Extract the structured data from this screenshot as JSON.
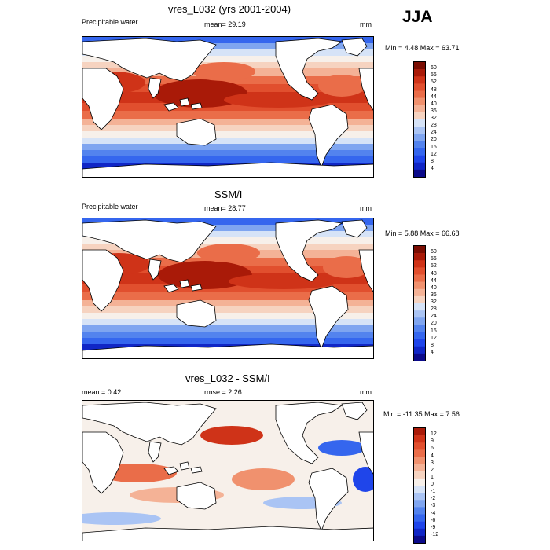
{
  "season": "JJA",
  "colors": {
    "positive_scale": [
      "#0b0a8a",
      "#1026c6",
      "#1f45ea",
      "#3566ee",
      "#5383ee",
      "#7fa5f0",
      "#aac4f4",
      "#d6e3f7",
      "#f7f0ea",
      "#f6d3c0",
      "#f4b296",
      "#f0916e",
      "#ea6d49",
      "#e14f2e",
      "#cf3318",
      "#a91a08",
      "#7a0d02"
    ],
    "diff_scale": [
      "#0b0a8a",
      "#1026c6",
      "#1f45ea",
      "#3566ee",
      "#5383ee",
      "#7fa5f0",
      "#aac4f4",
      "#d6e3f7",
      "#f7f0ea",
      "#f6d3c0",
      "#f4b296",
      "#f0916e",
      "#ea6d49",
      "#e14f2e",
      "#cf3318",
      "#a91a08"
    ],
    "land": "#ffffff"
  },
  "chart_data": [
    {
      "type": "heatmap",
      "title": "vres_L032 (yrs 2001-2004)",
      "left_label": "Precipitable water",
      "center_label": "mean=  29.19",
      "units": "mm",
      "stats": "Min =   4.48 Max =  63.71",
      "colorbar_ticks": [
        "60",
        "56",
        "52",
        "48",
        "44",
        "40",
        "36",
        "32",
        "28",
        "24",
        "20",
        "16",
        "12",
        "8",
        "4"
      ],
      "field": {
        "mean": 29.19,
        "min": 4.48,
        "max": 63.71
      }
    },
    {
      "type": "heatmap",
      "title": "SSM/I",
      "left_label": "Precipitable water",
      "center_label": "mean=  28.77",
      "units": "mm",
      "stats": "Min =   5.88 Max =  66.68",
      "colorbar_ticks": [
        "60",
        "56",
        "52",
        "48",
        "44",
        "40",
        "36",
        "32",
        "28",
        "24",
        "20",
        "16",
        "12",
        "8",
        "4"
      ],
      "field": {
        "mean": 28.77,
        "min": 5.88,
        "max": 66.68
      }
    },
    {
      "type": "heatmap",
      "title": "vres_L032 - SSM/I",
      "left_label": "mean =   0.42",
      "center_label": "rmse =   2.26",
      "units": "mm",
      "stats": "Min = -11.35 Max =   7.56",
      "colorbar_ticks": [
        "12",
        "9",
        "6",
        "4",
        "3",
        "2",
        "1",
        "0",
        "-1",
        "-2",
        "-3",
        "-4",
        "-6",
        "-9",
        "-12"
      ],
      "field": {
        "mean": 0.42,
        "rmse": 2.26,
        "min": -11.35,
        "max": 7.56
      }
    }
  ]
}
